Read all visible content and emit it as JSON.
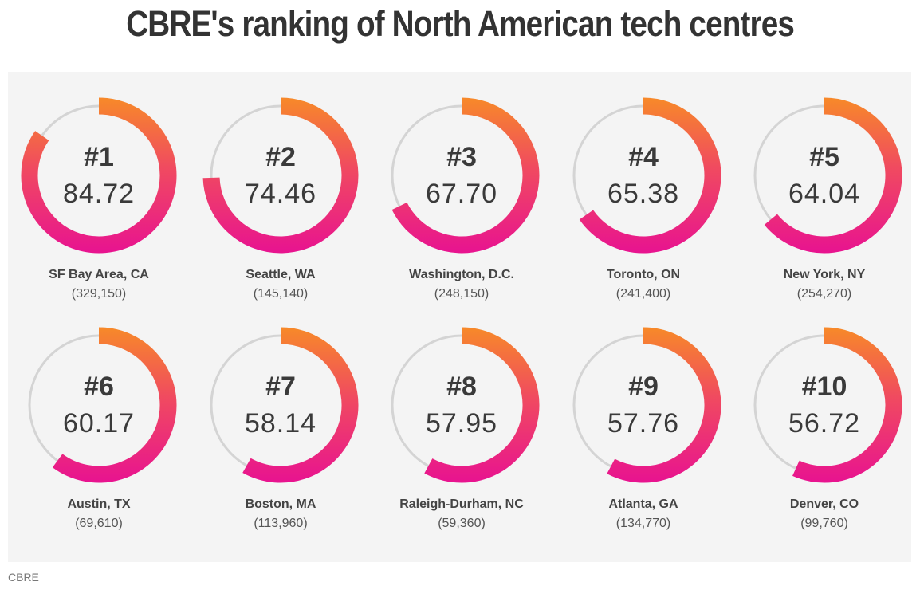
{
  "title": "CBRE's ranking of North American tech centres",
  "source": "CBRE",
  "colors": {
    "gradient_top": "#f7882a",
    "gradient_bottom": "#e8148f",
    "track": "#d4d4d4",
    "panel": "#f4f4f4"
  },
  "chart_data": {
    "type": "radial-bar",
    "scale_max": 100,
    "items": [
      {
        "rank": "#1",
        "score": 84.72,
        "name": "SF Bay Area, CA",
        "count": "(329,150)"
      },
      {
        "rank": "#2",
        "score": 74.46,
        "name": "Seattle, WA",
        "count": "(145,140)"
      },
      {
        "rank": "#3",
        "score": 67.7,
        "name": "Washington, D.C.",
        "count": "(248,150)"
      },
      {
        "rank": "#4",
        "score": 65.38,
        "name": "Toronto, ON",
        "count": "(241,400)"
      },
      {
        "rank": "#5",
        "score": 64.04,
        "name": "New York, NY",
        "count": "(254,270)"
      },
      {
        "rank": "#6",
        "score": 60.17,
        "name": "Austin, TX",
        "count": "(69,610)"
      },
      {
        "rank": "#7",
        "score": 58.14,
        "name": "Boston, MA",
        "count": "(113,960)"
      },
      {
        "rank": "#8",
        "score": 57.95,
        "name": "Raleigh-Durham, NC",
        "count": "(59,360)"
      },
      {
        "rank": "#9",
        "score": 57.76,
        "name": "Atlanta, GA",
        "count": "(134,770)"
      },
      {
        "rank": "#10",
        "score": 56.72,
        "name": "Denver, CO",
        "count": "(99,760)"
      }
    ]
  }
}
